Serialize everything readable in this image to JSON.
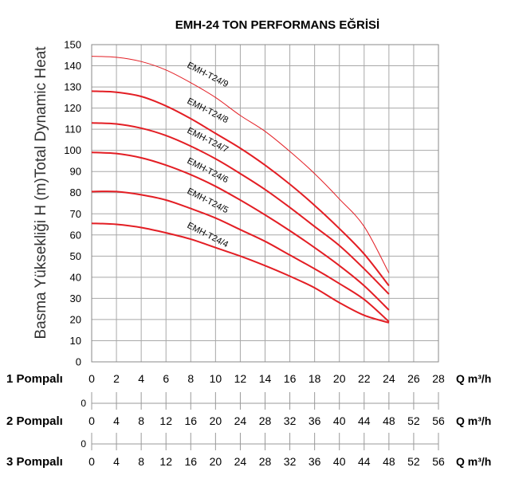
{
  "chart_data": {
    "type": "line",
    "title": "EMH-24 TON PERFORMANS EĞRİSİ",
    "ylabel": "Basma Yüksekliği H (m)Total Dynamic Heat",
    "xlabel": "Q m³/h",
    "ylim": [
      0,
      150
    ],
    "xlim": [
      0,
      28
    ],
    "y_ticks": [
      "0",
      "10",
      "20",
      "30",
      "40",
      "50",
      "60",
      "70",
      "80",
      "90",
      "100",
      "110",
      "120",
      "130",
      "140",
      "150"
    ],
    "grid": true,
    "x_axes": [
      {
        "label": "1 Pompalı",
        "unit": "Q m³/h",
        "zero": "0",
        "ticks": [
          "0",
          "2",
          "4",
          "6",
          "8",
          "10",
          "12",
          "14",
          "16",
          "18",
          "20",
          "22",
          "24",
          "26",
          "28"
        ]
      },
      {
        "label": "2 Pompalı",
        "unit": "Q m³/h",
        "zero": "0",
        "ticks": [
          "0",
          "4",
          "8",
          "12",
          "16",
          "20",
          "24",
          "28",
          "32",
          "36",
          "40",
          "44",
          "48",
          "52",
          "56"
        ]
      },
      {
        "label": "3 Pompalı",
        "unit": "Q m³/h",
        "zero": "0",
        "ticks": [
          "0",
          "4",
          "8",
          "12",
          "16",
          "20",
          "24",
          "28",
          "32",
          "36",
          "40",
          "44",
          "48",
          "52",
          "56"
        ]
      }
    ],
    "series": [
      {
        "name": "EMH-T24/9",
        "x": [
          0,
          2,
          4,
          6,
          8,
          10,
          12,
          14,
          16,
          18,
          20,
          22,
          24
        ],
        "values": [
          144.5,
          144,
          142,
          138,
          132,
          125,
          116.5,
          109,
          99.5,
          89,
          77,
          64,
          42
        ]
      },
      {
        "name": "EMH-T24/8",
        "x": [
          0,
          2,
          4,
          6,
          8,
          10,
          12,
          14,
          16,
          18,
          20,
          22,
          24
        ],
        "values": [
          128,
          127.5,
          125.5,
          121,
          115,
          108,
          101,
          93,
          84,
          74,
          63,
          51,
          36
        ]
      },
      {
        "name": "EMH-T24/7",
        "x": [
          0,
          2,
          4,
          6,
          8,
          10,
          12,
          14,
          16,
          18,
          20,
          22,
          24
        ],
        "values": [
          113,
          112.5,
          110.5,
          107,
          102,
          96,
          89,
          81.5,
          73,
          64,
          55,
          44,
          32
        ]
      },
      {
        "name": "EMH-T24/6",
        "x": [
          0,
          2,
          4,
          6,
          8,
          10,
          12,
          14,
          16,
          18,
          20,
          22,
          24
        ],
        "values": [
          99,
          98.5,
          96.5,
          93,
          88.5,
          83,
          76.5,
          69.5,
          62,
          54,
          45.5,
          36,
          24.5
        ]
      },
      {
        "name": "EMH-T24/5",
        "x": [
          0,
          2,
          4,
          6,
          8,
          10,
          12,
          14,
          16,
          18,
          20,
          22,
          24
        ],
        "values": [
          80.5,
          80.5,
          79,
          76.5,
          72.5,
          68,
          62.5,
          57,
          50.5,
          44,
          37,
          29.5,
          19
        ]
      },
      {
        "name": "EMH-T24/4",
        "x": [
          0,
          2,
          4,
          6,
          8,
          10,
          12,
          14,
          16,
          18,
          20,
          22,
          24
        ],
        "values": [
          65.5,
          65,
          63.5,
          61,
          58,
          54,
          50,
          45.5,
          40.5,
          35,
          28,
          22,
          18.5
        ]
      }
    ],
    "line_color": "#e31e24"
  }
}
